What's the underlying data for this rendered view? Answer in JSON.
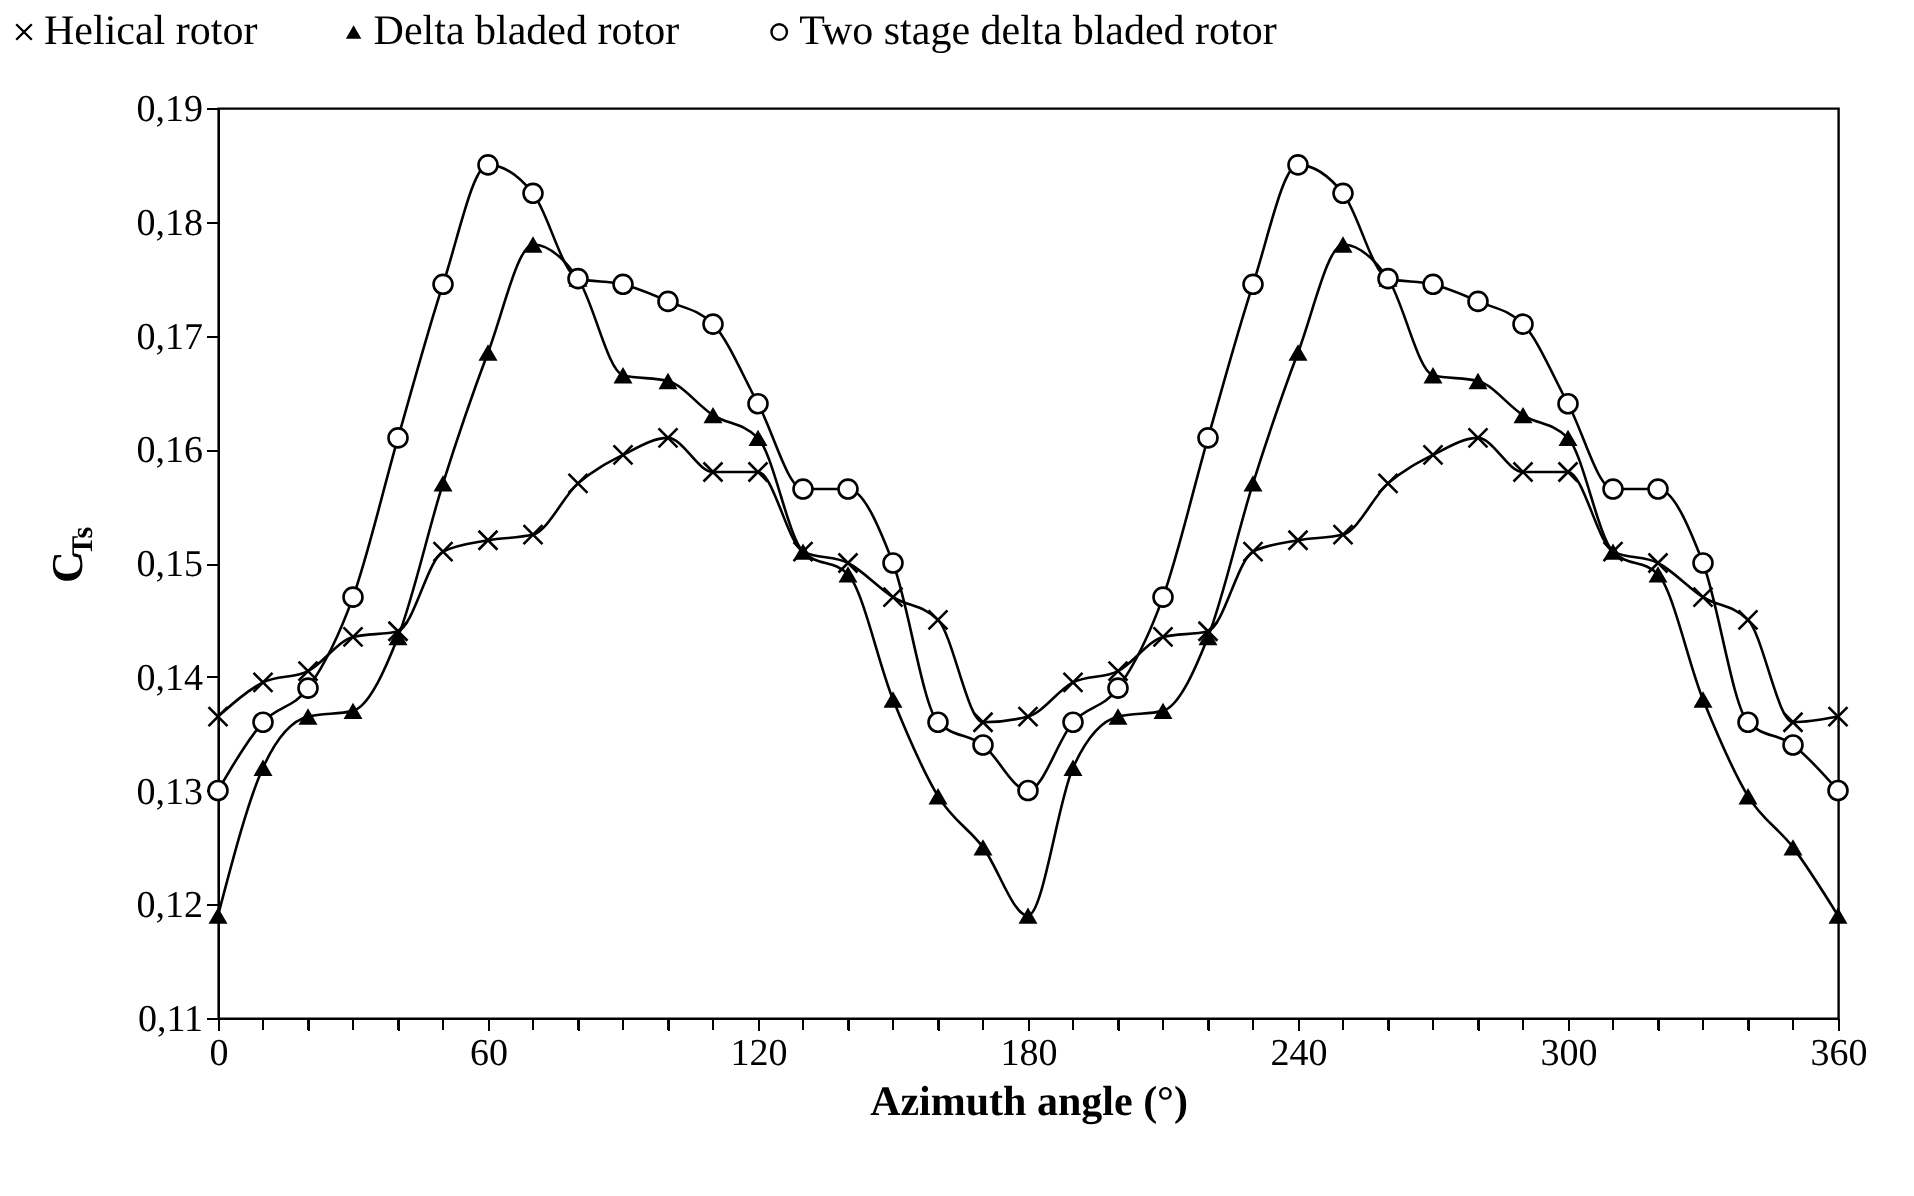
{
  "chart_data": {
    "type": "line",
    "xlabel": "Azimuth angle (°)",
    "ylabel": "C$_{Ts}$",
    "x": [
      0,
      10,
      20,
      30,
      40,
      50,
      60,
      70,
      80,
      90,
      100,
      110,
      120,
      130,
      140,
      150,
      160,
      170,
      180,
      190,
      200,
      210,
      220,
      230,
      240,
      250,
      260,
      270,
      280,
      290,
      300,
      310,
      320,
      330,
      340,
      350,
      360
    ],
    "series": [
      {
        "name": "Helical rotor",
        "color": "#000000",
        "marker": "cross",
        "values": [
          0.1365,
          0.1395,
          0.1405,
          0.1435,
          0.144,
          0.151,
          0.152,
          0.1525,
          0.157,
          0.1595,
          0.161,
          0.158,
          0.158,
          0.151,
          0.15,
          0.147,
          0.145,
          0.136,
          0.1365,
          0.1395,
          0.1405,
          0.1435,
          0.144,
          0.151,
          0.152,
          0.1525,
          0.157,
          0.1595,
          0.161,
          0.158,
          0.158,
          0.151,
          0.15,
          0.147,
          0.145,
          0.136,
          0.1365
        ]
      },
      {
        "name": "Delta bladed rotor",
        "color": "#000000",
        "marker": "triangle",
        "values": [
          0.119,
          0.132,
          0.1365,
          0.137,
          0.1435,
          0.157,
          0.1685,
          0.178,
          0.175,
          0.1665,
          0.166,
          0.163,
          0.161,
          0.151,
          0.149,
          0.138,
          0.1295,
          0.125,
          0.119,
          0.132,
          0.1365,
          0.137,
          0.1435,
          0.157,
          0.1685,
          0.178,
          0.175,
          0.1665,
          0.166,
          0.163,
          0.161,
          0.151,
          0.149,
          0.138,
          0.1295,
          0.125,
          0.119
        ]
      },
      {
        "name": "Two stage delta bladed rotor",
        "color": "#000000",
        "marker": "circle",
        "values": [
          0.13,
          0.136,
          0.139,
          0.147,
          0.161,
          0.1745,
          0.185,
          0.1825,
          0.175,
          0.1745,
          0.173,
          0.171,
          0.164,
          0.1565,
          0.1565,
          0.15,
          0.136,
          0.134,
          0.13,
          0.136,
          0.139,
          0.147,
          0.161,
          0.1745,
          0.185,
          0.1825,
          0.175,
          0.1745,
          0.173,
          0.171,
          0.164,
          0.1565,
          0.1565,
          0.15,
          0.136,
          0.134,
          0.13
        ]
      }
    ],
    "xlim": [
      0,
      360
    ],
    "xticks": [
      0,
      {
        "value": 10,
        "label": null
      },
      {
        "value": 20,
        "label": null
      },
      {
        "value": 30,
        "label": null
      },
      {
        "value": 40,
        "label": null
      },
      {
        "value": 50,
        "label": null
      },
      60,
      {
        "value": 70,
        "label": null
      },
      {
        "value": 80,
        "label": null
      },
      {
        "value": 90,
        "label": null
      },
      {
        "value": 100,
        "label": null
      },
      {
        "value": 110,
        "label": null
      },
      120,
      {
        "value": 130,
        "label": null
      },
      {
        "value": 140,
        "label": null
      },
      {
        "value": 150,
        "label": null
      },
      {
        "value": 160,
        "label": null
      },
      {
        "value": 170,
        "label": null
      },
      180,
      {
        "value": 190,
        "label": null
      },
      {
        "value": 200,
        "label": null
      },
      {
        "value": 210,
        "label": null
      },
      {
        "value": 220,
        "label": null
      },
      {
        "value": 230,
        "label": null
      },
      240,
      {
        "value": 250,
        "label": null
      },
      {
        "value": 260,
        "label": null
      },
      {
        "value": 270,
        "label": null
      },
      {
        "value": 280,
        "label": null
      },
      {
        "value": 290,
        "label": null
      },
      300,
      {
        "value": 310,
        "label": null
      },
      {
        "value": 320,
        "label": null
      },
      {
        "value": 330,
        "label": null
      },
      {
        "value": 340,
        "label": null
      },
      {
        "value": 350,
        "label": null
      },
      360
    ],
    "ylim": [
      0.11,
      0.19
    ],
    "yticks": [
      {
        "value": 0.11,
        "label": "0,11"
      },
      {
        "value": 0.12,
        "label": "0,12"
      },
      {
        "value": 0.13,
        "label": "0,13"
      },
      {
        "value": 0.14,
        "label": "0,14"
      },
      {
        "value": 0.15,
        "label": "0,15"
      },
      {
        "value": 0.16,
        "label": "0,16"
      },
      {
        "value": 0.17,
        "label": "0,17"
      },
      {
        "value": 0.18,
        "label": "0,18"
      },
      {
        "value": 0.19,
        "label": "0,19"
      }
    ],
    "legend": "top",
    "grid": false,
    "line_style": "solid"
  }
}
